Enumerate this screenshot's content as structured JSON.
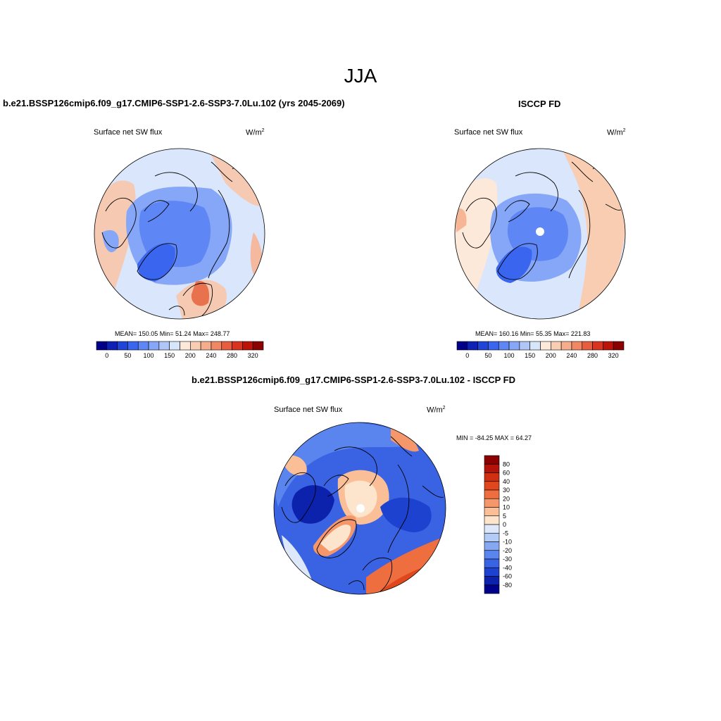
{
  "figure": {
    "season": "JJA"
  },
  "panels": {
    "model": {
      "title": "b.e21.BSSP126cmip6.f09_g17.CMIP6-SSP1-2.6-SSP3-7.0Lu.102 (yrs 2045-2069)",
      "variable": "Surface net SW flux",
      "units": "W/m",
      "units_exp": "2",
      "stats": "MEAN= 150.05  Min=  51.24  Max= 248.77"
    },
    "obs": {
      "title": "ISCCP FD",
      "variable": "Surface net SW flux",
      "units": "W/m",
      "units_exp": "2",
      "stats": "MEAN= 160.16  Min=  55.35  Max= 221.83"
    },
    "diff": {
      "title": "b.e21.BSSP126cmip6.f09_g17.CMIP6-SSP1-2.6-SSP3-7.0Lu.102 - ISCCP FD",
      "variable": "Surface net SW flux",
      "units": "W/m",
      "units_exp": "2",
      "stats": "MIN = -84.25 MAX =  64.27"
    }
  },
  "colorbars": {
    "abs": {
      "colors": [
        "#00008b",
        "#0d22b5",
        "#1f45d8",
        "#3a66ef",
        "#5e86f5",
        "#86a6f7",
        "#afc6f6",
        "#d7e6f8",
        "#fde9da",
        "#f9cdb2",
        "#f5ad8b",
        "#f08864",
        "#e75d3e",
        "#d8341f",
        "#bb1308",
        "#8b0000"
      ],
      "labels": [
        "0",
        "50",
        "100",
        "150",
        "200",
        "240",
        "280",
        "320"
      ]
    },
    "diff": {
      "colors": [
        "#8b0000",
        "#b3130a",
        "#d0300f",
        "#e0471c",
        "#ee6e3f",
        "#f6966b",
        "#fbbf98",
        "#fde4cc",
        "#dde9fb",
        "#b3ccf7",
        "#86a8f3",
        "#5b85ee",
        "#3a63e4",
        "#1d42d0",
        "#0c22ad",
        "#00008b"
      ],
      "labels": [
        "80",
        "60",
        "40",
        "30",
        "20",
        "10",
        "5",
        "0",
        "-5",
        "-10",
        "-20",
        "-30",
        "-40",
        "-60",
        "-80"
      ]
    }
  }
}
